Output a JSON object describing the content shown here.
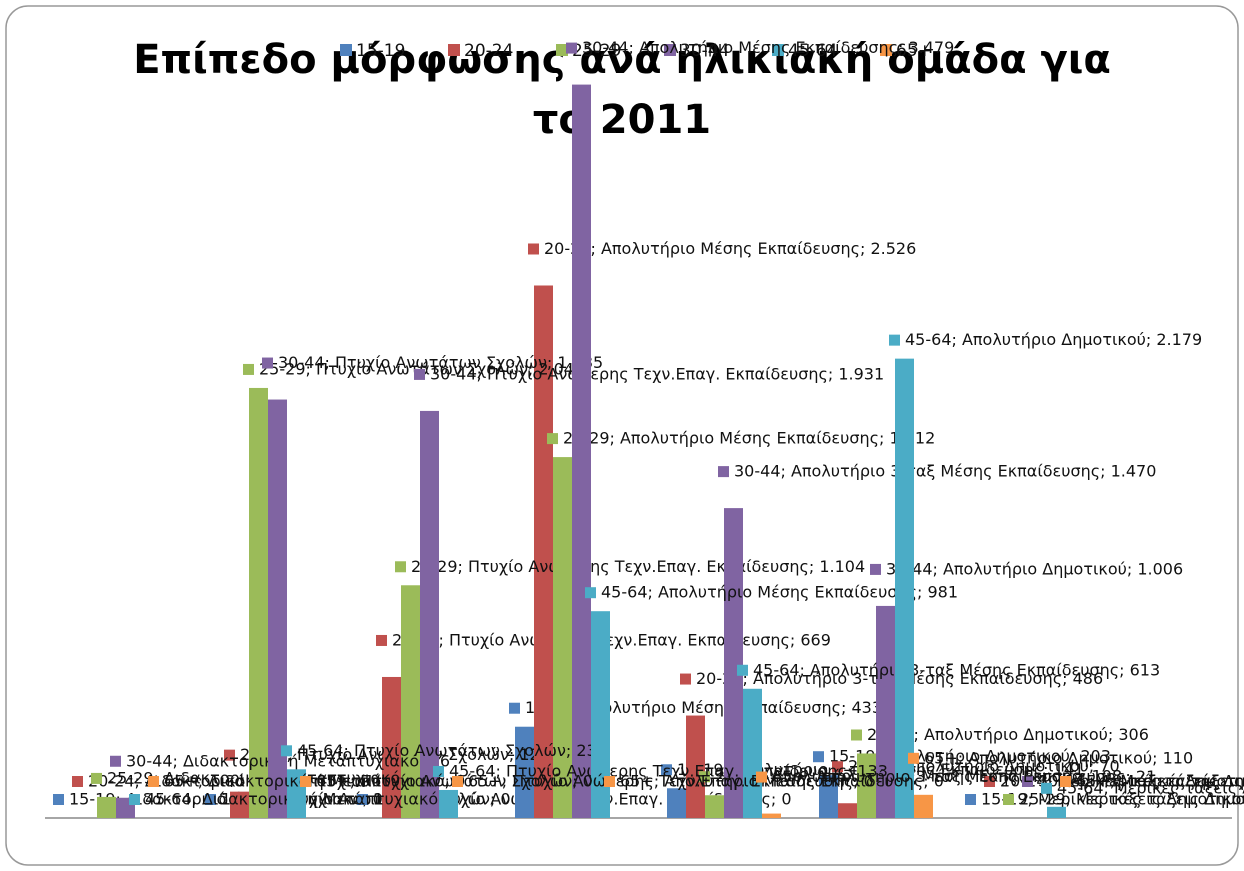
{
  "chart_data": {
    "type": "bar",
    "title": "Επίπεδο μόρφωσης ανά ηλικιακή ομάδα για το 2011",
    "ylim": [
      0,
      3700
    ],
    "series": [
      {
        "name": "15-19",
        "color": "#4f81bd",
        "values": [
          0,
          0,
          0,
          433,
          141,
          203,
          0
        ],
        "value_labels": [
          "15-19; Διδακτορικό ή Μεταπτυχιακό; 0",
          "15-19; Πτυχίο Ανωτάτων Σχολών; 0",
          "15-19; Πτυχίο Ανώτερης Τεχν.Επαγ. Εκπαίδευσης; 0",
          "15-19; Απολυτήριο Μέσης Εκπαίδευσης; 433",
          "15-19; Απολυτήριο 3-ταξ Μέσης Εκπαίδευσης; 141",
          "15-19; Απολυτήριο Δημοτικού; 203",
          "15-19; Μερικές τάξεις Δημοτικού; 0"
        ]
      },
      {
        "name": "20-24",
        "color": "#c0504d",
        "values": [
          0,
          125,
          669,
          2526,
          486,
          70,
          0
        ],
        "value_labels": [
          "20-24; Διδακτορικό ή Μεταπτυχιακό; 0",
          "20-24; Πτυχίο Ανωτάτων Σχολών; 125",
          "20-24; Πτυχίο Ανώτερης Τεχν.Επαγ. Εκπαίδευσης; 669",
          "20-24; Απολυτήριο Μέσης Εκπαίδευσης; 2.526",
          "20-24; Απολυτήριο 3-ταξ Μέσης Εκπαίδευσης; 486",
          "20-24; Απολυτήριο Δημοτικού; 70",
          "20-24; Μερικές τάξεις Δημοτικού; 0"
        ]
      },
      {
        "name": "25-29",
        "color": "#9bbb59",
        "values": [
          100,
          2040,
          1104,
          1712,
          108,
          306,
          0
        ],
        "value_labels": [
          "25-29; Διδακτορικό ή Μεταπτυχιακό; 100",
          "25-29; Πτυχίο Ανωτάτων Σχολών; 2.040",
          "25-29; Πτυχίο Ανώτερης Τεχν.Επαγ. Εκπαίδευσης; 1.104",
          "25-29; Απολυτήριο Μέσης Εκπαίδευσης; 1.712",
          "25-29; Απολυτήριο 3-ταξ Μέσης Εκπαίδευσης; 108",
          "25-29; Απολυτήριο Δημοτικού; 306",
          "25-29; Μερικές τάξεις Δημοτικού; 0"
        ]
      },
      {
        "name": "30-44",
        "color": "#8064a2",
        "values": [
          96,
          1985,
          1931,
          3479,
          1470,
          1006,
          0
        ],
        "value_labels": [
          "30-44; Διδακτορικό ή Μεταπτυχιακό; 96",
          "30-44; Πτυχίο Ανωτάτων Σχολών; 1.985",
          "30-44; Πτυχίο Ανώτερης Τεχν.Επαγ. Εκπαίδευσης; 1.931",
          "30-44; Απολυτήριο Μέσης Εκπαίδευσης; 3.479",
          "30-44; Απολυτήριο 3-ταξ Μέσης Εκπαίδευσης; 1.470",
          "30-44; Απολυτήριο Δημοτικού; 1.006",
          "30-44; Μερικές τάξεις Δημοτικού; 0"
        ]
      },
      {
        "name": "45-64",
        "color": "#4bacc6",
        "values": [
          0,
          231,
          133,
          981,
          613,
          2179,
          53
        ],
        "value_labels": [
          "45-64; Διδακτορικό ή Μεταπτυχιακό; 0",
          "45-64; Πτυχίο Ανωτάτων Σχολών; 231",
          "45-64; Πτυχίο Ανώτερης Τεχν.Επαγ. Εκπαίδευσης; 133",
          "45-64; Απολυτήριο Μέσης Εκπαίδευσης; 981",
          "45-64; Απολυτήριο 3-ταξ Μέσης Εκπαίδευσης; 613",
          "45-64; Απολυτήριο Δημοτικού; 2.179",
          "45-64; Μερικές τάξεις Δημοτικού; 53"
        ]
      },
      {
        "name": "65+",
        "color": "#f79646",
        "values": [
          0,
          0,
          0,
          0,
          21,
          110,
          0
        ],
        "value_labels": [
          "65+; Διδακτορικό ή Μεταπτυχιακό; 0",
          "65+; Πτυχίο Ανωτάτων Σχολών; 0",
          "65+; Πτυχίο Ανώτερης Τεχν.Επαγ. Εκπαίδευσης; 0",
          "65+; Απολυτήριο Μέσης Εκπαίδευσης; 0",
          "65+; Απολυτήριο 3-ταξ Μέσης Εκπαίδευσης; 21",
          "65+; Απολυτήριο Δημοτικού; 110",
          "65+; Μερικές τάξεις Δημοτικού; 0"
        ]
      }
    ]
  }
}
